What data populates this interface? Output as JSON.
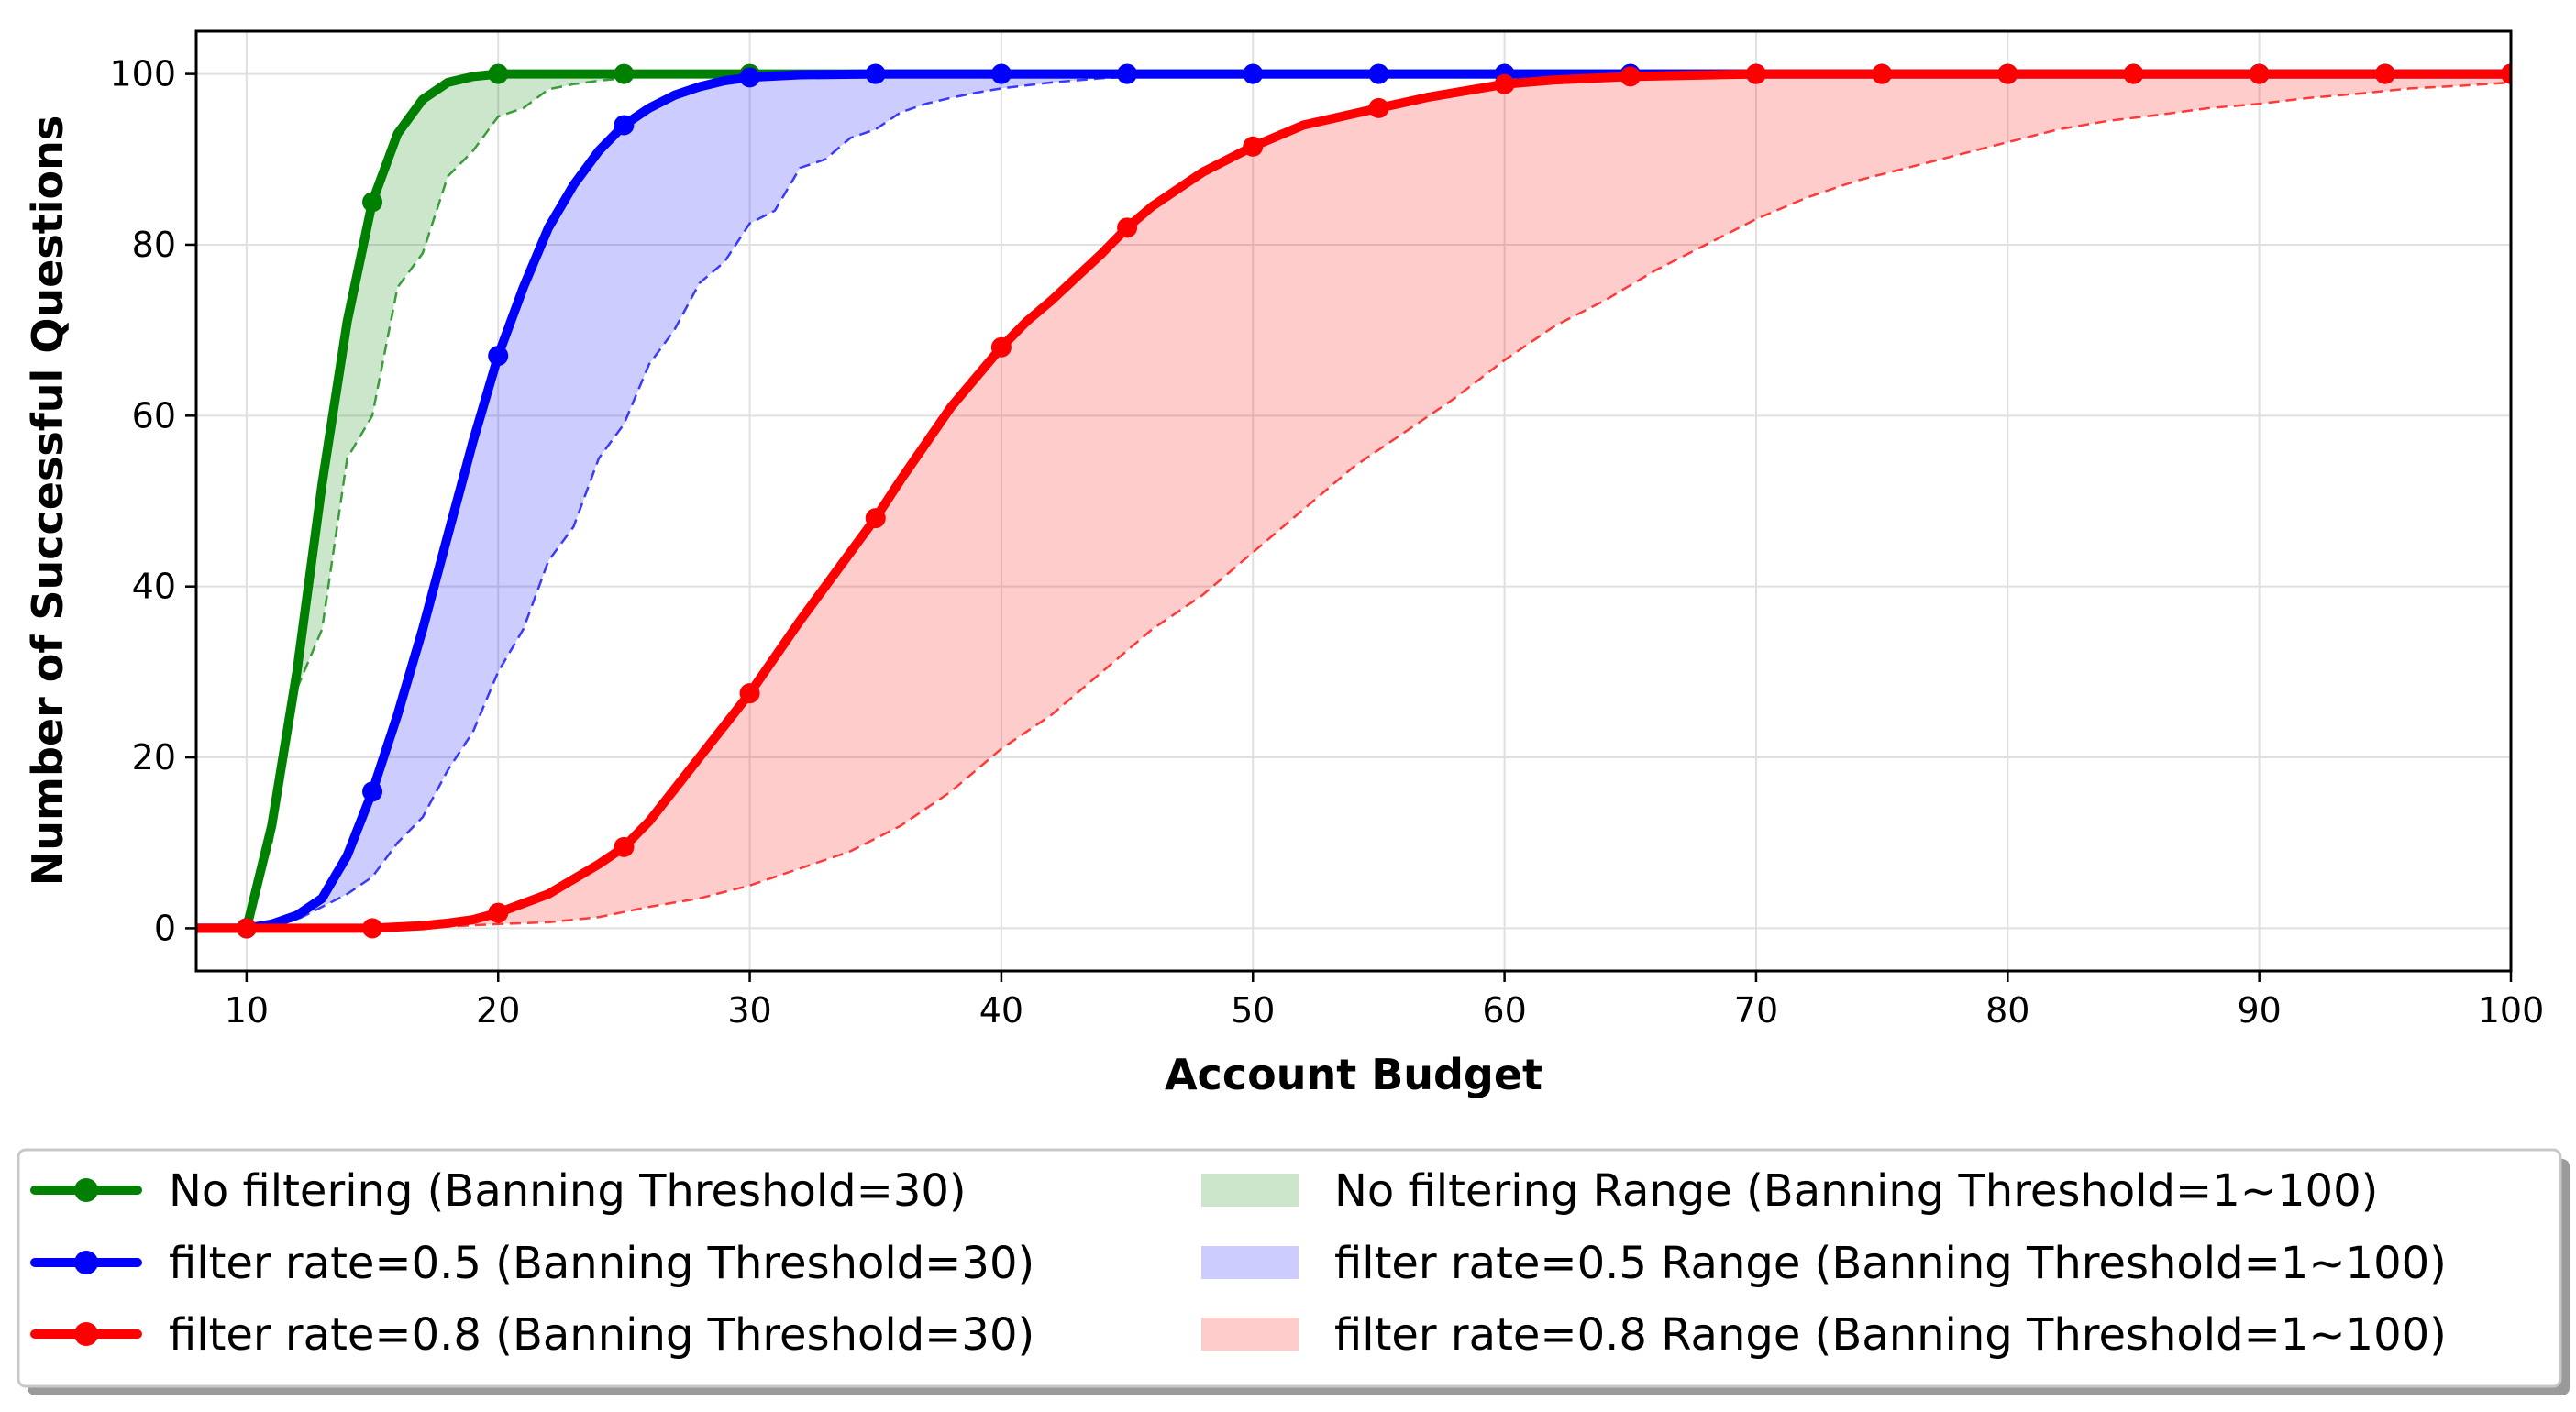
{
  "chart_data": {
    "type": "line",
    "xlabel": "Account Budget",
    "ylabel": "Number of Successful Questions",
    "xlim": [
      8,
      100
    ],
    "ylim": [
      -5,
      105
    ],
    "xticks": [
      10,
      20,
      30,
      40,
      50,
      60,
      70,
      80,
      90,
      100
    ],
    "yticks": [
      0,
      20,
      40,
      60,
      80,
      100
    ],
    "grid": true,
    "legend_position": "bottom",
    "series": [
      {
        "name": "No filtering (Banning Threshold=30)",
        "color": "#008000",
        "x": [
          8,
          10,
          11,
          12,
          13,
          14,
          15,
          16,
          17,
          18,
          19,
          20,
          22,
          25,
          30,
          35,
          40,
          45,
          50,
          55,
          60,
          65,
          70,
          75,
          80,
          85,
          90,
          95,
          100
        ],
        "y": [
          0,
          0,
          12,
          30,
          52,
          71,
          85,
          93,
          97,
          99,
          99.7,
          100,
          100,
          100,
          100,
          100,
          100,
          100,
          100,
          100,
          100,
          100,
          100,
          100,
          100,
          100,
          100,
          100,
          100
        ],
        "markers_x": [
          10,
          15,
          20,
          25,
          30,
          35,
          40,
          45,
          50,
          55,
          60,
          65,
          70,
          75,
          80,
          85,
          90,
          95,
          100
        ]
      },
      {
        "name": "filter rate=0.5 (Banning Threshold=30)",
        "color": "#0000ff",
        "x": [
          8,
          10,
          11,
          12,
          13,
          14,
          15,
          16,
          17,
          18,
          19,
          20,
          21,
          22,
          23,
          24,
          25,
          26,
          27,
          28,
          29,
          30,
          32,
          35,
          40,
          45,
          50,
          55,
          60,
          65,
          70,
          75,
          80,
          85,
          90,
          95,
          100
        ],
        "y": [
          0,
          0,
          0.5,
          1.5,
          3.5,
          8.5,
          16,
          25,
          35,
          46,
          57,
          67,
          75,
          82,
          87,
          91,
          94,
          96,
          97.5,
          98.5,
          99.2,
          99.6,
          99.9,
          100,
          100,
          100,
          100,
          100,
          100,
          100,
          100,
          100,
          100,
          100,
          100,
          100,
          100
        ],
        "markers_x": [
          10,
          15,
          20,
          25,
          30,
          35,
          40,
          45,
          50,
          55,
          60,
          65,
          70,
          75,
          80,
          85,
          90,
          95,
          100
        ]
      },
      {
        "name": "filter rate=0.8 (Banning Threshold=30)",
        "color": "#ff0000",
        "x": [
          8,
          10,
          15,
          17,
          18,
          19,
          20,
          22,
          24,
          25,
          26,
          28,
          30,
          32,
          34,
          35,
          36,
          38,
          40,
          41,
          42,
          44,
          45,
          46,
          48,
          50,
          52,
          55,
          57,
          60,
          62,
          65,
          70,
          75,
          80,
          85,
          90,
          95,
          100
        ],
        "y": [
          0,
          0,
          0,
          0.3,
          0.6,
          1,
          1.8,
          4,
          7.5,
          9.5,
          12.5,
          20,
          27.5,
          36,
          44,
          48,
          52.5,
          61,
          68,
          71,
          73.5,
          79,
          82,
          84.5,
          88.5,
          91.5,
          94,
          96,
          97.3,
          98.8,
          99.3,
          99.7,
          100,
          100,
          100,
          100,
          100,
          100,
          100
        ],
        "markers_x": [
          10,
          15,
          20,
          25,
          30,
          35,
          40,
          45,
          50,
          55,
          60,
          65,
          70,
          75,
          80,
          85,
          90,
          95,
          100
        ]
      }
    ],
    "ranges": [
      {
        "name": "No filtering Range (Banning Threshold=1~100)",
        "color": "#008000",
        "fill": "rgba(0,128,0,0.2)",
        "upper_series": 0,
        "lower": {
          "x": [
            8,
            10,
            11,
            12,
            13,
            14,
            15,
            16,
            17,
            18,
            19,
            20,
            21,
            22,
            23,
            24,
            25,
            26,
            27,
            28,
            29,
            30,
            35,
            40,
            45,
            50,
            55,
            60,
            65,
            70,
            75,
            80,
            85,
            90,
            95,
            100
          ],
          "y": [
            0,
            0,
            10,
            28,
            35,
            55,
            60,
            75,
            79,
            88,
            91,
            95,
            96,
            98.2,
            98.8,
            99.2,
            99.5,
            99.7,
            99.8,
            99.9,
            100,
            100,
            100,
            100,
            100,
            100,
            100,
            100,
            100,
            100,
            100,
            100,
            100,
            100,
            100,
            100
          ]
        }
      },
      {
        "name": "filter rate=0.5 Range (Banning Threshold=1~100)",
        "color": "#0000ff",
        "fill": "rgba(0,0,255,0.2)",
        "upper_series": 1,
        "lower": {
          "x": [
            8,
            10,
            11,
            12,
            13,
            14,
            15,
            16,
            17,
            18,
            19,
            20,
            21,
            22,
            23,
            24,
            25,
            26,
            27,
            28,
            29,
            30,
            31,
            32,
            33,
            34,
            35,
            36,
            37,
            38,
            39,
            40,
            42,
            44,
            46,
            48,
            50,
            55,
            60,
            65,
            70,
            75,
            80,
            85,
            90,
            95,
            100
          ],
          "y": [
            0,
            0,
            0.3,
            1,
            2.5,
            4,
            6,
            10,
            13,
            18.5,
            23,
            30,
            35,
            43,
            47,
            55,
            59,
            66,
            70,
            75.5,
            78,
            82.5,
            84,
            89,
            90,
            92.5,
            93.5,
            95.5,
            96.5,
            97.2,
            97.8,
            98.3,
            99,
            99.5,
            99.8,
            99.9,
            100,
            100,
            100,
            100,
            100,
            100,
            100,
            100,
            100,
            100,
            100
          ]
        }
      },
      {
        "name": "filter rate=0.8 Range (Banning Threshold=1~100)",
        "color": "#ff0000",
        "fill": "rgba(255,0,0,0.2)",
        "upper_series": 2,
        "lower": {
          "x": [
            8,
            10,
            15,
            18,
            20,
            22,
            24,
            26,
            28,
            30,
            32,
            34,
            36,
            38,
            40,
            42,
            44,
            46,
            48,
            50,
            52,
            54,
            56,
            58,
            60,
            62,
            64,
            66,
            68,
            70,
            72,
            74,
            76,
            78,
            80,
            82,
            84,
            86,
            88,
            90,
            92,
            94,
            96,
            98,
            100
          ],
          "y": [
            0,
            0,
            0,
            0.2,
            0.5,
            0.7,
            1.3,
            2.5,
            3.5,
            5,
            7,
            9,
            12,
            16,
            21,
            25,
            30,
            35,
            39,
            44,
            49,
            54,
            58,
            62,
            66.5,
            70.5,
            73.5,
            77,
            80,
            83,
            85.5,
            87.5,
            89,
            90.5,
            92,
            93.5,
            94.5,
            95.2,
            96,
            96.5,
            97.2,
            97.7,
            98.3,
            98.6,
            99
          ]
        }
      }
    ]
  }
}
